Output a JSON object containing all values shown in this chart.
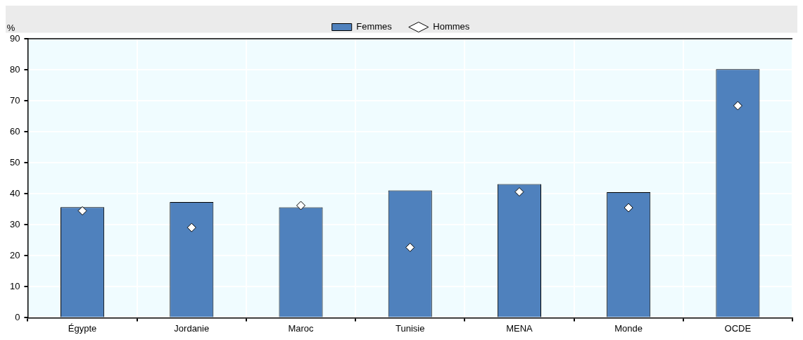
{
  "chart_data": {
    "type": "bar",
    "ylabel": "%",
    "categories": [
      "Égypte",
      "Jordanie",
      "Maroc",
      "Tunisie",
      "MENA",
      "Monde",
      "OCDE"
    ],
    "series": [
      {
        "name": "Femmes",
        "color": "#4f81bd",
        "values": [
          35.7,
          37.3,
          35.6,
          41.1,
          43.1,
          40.5,
          80.2
        ]
      },
      {
        "name": "Hommes",
        "type": "scatter",
        "marker": "diamond",
        "color": "#ffffff",
        "values": [
          34.5,
          29.1,
          36.2,
          22.7,
          40.6,
          35.5,
          68.4
        ]
      }
    ],
    "ylim": [
      0,
      90
    ],
    "yticks": [
      0,
      10,
      20,
      30,
      40,
      50,
      60,
      70,
      80,
      90
    ],
    "grid": true,
    "legend": "top"
  }
}
